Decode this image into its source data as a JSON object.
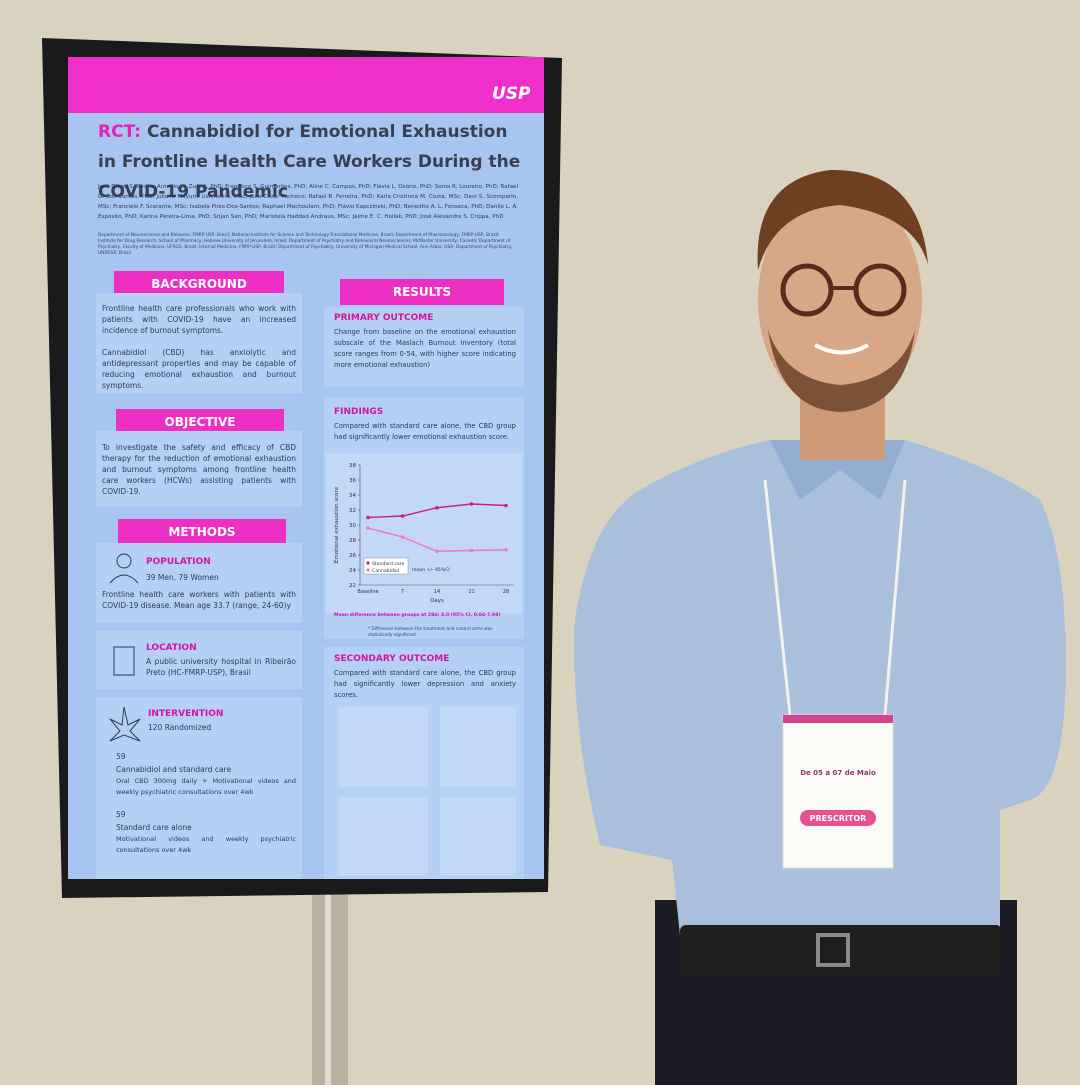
{
  "poster": {
    "logo": "USP",
    "title_prefix": "RCT:",
    "title": "Cannabidiol for Emotional Exhaustion in Frontline Health Care Workers During the COVID-19 Pandemic",
    "authors": "José Diogo S. Souza; Antonio W. Zuardi, PhD; Francisco S. Guimarães, PhD; Aline C. Campos, PhD; Flávia L. Osório, PhD; Sonia R. Loureiro, PhD; Rafael G. dos Santos, PhD; Juliana Mayumi Ushirohira, MSc; Julia Cozar Pacheco; Rafael R. Ferreira, PhD; Karla Cristinna M. Costa, MSc; Davi S. Scomparin, MSc; Franciele F. Scarante, MSc; Isabela Pires-Dos-Santos; Raphael Mechoulam, PhD; Flávio Kapczinski, PhD; Benedito A. L. Fonseca, PhD; Danilo L. A. Esposito, PhD; Karina Pereira-Lima, PhD; Srijan Sen, PhD; Maristela Haddad Andraus, MSc; Jaime E. C. Hallak, PhD; José Alexandre S. Crippa, PhD",
    "affiliations": "Department of Neuroscience and Behavior, FMRP-USP, Brazil; National Institute for Science and Technology-Translational Medicine, Brazil; Department of Pharmacology, FMRP-USP, Brazil; Institute for Drug Research, School of Pharmacy, Hebrew University of Jerusalem, Israel; Department of Psychiatry and Behavioral Neurosciences, McMaster University, Canada; Department of Psychiatry, Faculty of Medicine, UFRGS, Brazil; Internal Medicine, FMRP-USP, Brazil; Department of Psychiatry, University of Michigan Medical School, Ann Arbor, USA; Department of Psychiatry, UNIFESP, Brazil",
    "background": {
      "heading": "BACKGROUND",
      "paragraphs": [
        "Frontline health care professionals who work with patients with COVID-19 have an increased incidence of burnout symptoms.",
        "Cannabidiol (CBD) has anxiolytic and antidepressant properties and may be capable of reducing emotional exhaustion and burnout symptoms."
      ]
    },
    "objective": {
      "heading": "OBJECTIVE",
      "text": "To investigate the safety and efficacy of CBD therapy for the reduction of emotional exhaustion and burnout symptoms among frontline health care workers (HCWs) assisting patients with COVID-19."
    },
    "methods": {
      "heading": "METHODS",
      "population": {
        "label": "POPULATION",
        "count": "39 Men, 79 Women",
        "text": "Frontline health care workers with patients with COVID-19 disease. Mean age 33.7 (range, 24-60)y"
      },
      "location": {
        "label": "LOCATION",
        "text": "A public university hospital in Ribeirão Preto (HC-FMRP-USP), Brasil"
      },
      "intervention": {
        "label": "INTERVENTION",
        "count": "120 Randomized",
        "arms": [
          {
            "n": "59",
            "name": "Cannabidiol and standard care",
            "text": "Oral CBD 300mg daily + Motivational videos and weekly psychiatric consultations over 4wk"
          },
          {
            "n": "59",
            "name": "Standard care alone",
            "text": "Motivational videos and weekly psychiatric consultations over 4wk"
          }
        ]
      }
    },
    "results": {
      "heading": "RESULTS",
      "primary": {
        "label": "PRIMARY OUTCOME",
        "text": "Change from baseline on the emotional exhaustion subscale of the Maslach Burnout Inventory (total score ranges from 0-54, with higher score indicating more emotional exhaustion)"
      },
      "findings": {
        "label": "FINDINGS",
        "text": "Compared with standard care alone, the CBD group had significantly lower emotional exhaustion score.",
        "chart": {
          "type": "line",
          "ylabel": "Emotional exhaustion score",
          "xlabel": "Days",
          "categories": [
            "Baseline",
            "7",
            "14",
            "21",
            "28"
          ],
          "series": [
            {
              "name": "Standard care",
              "color": "#c8207c",
              "values": [
                31,
                31.2,
                32.3,
                32.8,
                32.6
              ]
            },
            {
              "name": "Cannabidiol",
              "color": "#f07ab8",
              "values": [
                29.6,
                28.4,
                26.5,
                26.6,
                26.7
              ]
            }
          ],
          "legend_note": "mean +/- 95%CI",
          "ylim": [
            22,
            38
          ],
          "yticks": [
            22,
            24,
            26,
            28,
            30,
            32,
            34,
            36,
            38
          ]
        },
        "mean_difference": "Mean difference between groups at 28d: 4.0 (95% CI, 0.04-7.98)",
        "footnote": "* Difference between the treatment and control arms was statistically significant"
      },
      "secondary": {
        "label": "SECONDARY OUTCOME",
        "text": "Compared with standard care alone, the CBD group had significantly lower depression and anxiety scores."
      }
    }
  },
  "badge": {
    "dates": "De 05 a 07 de Maio",
    "role": "PRESCRITOR"
  }
}
